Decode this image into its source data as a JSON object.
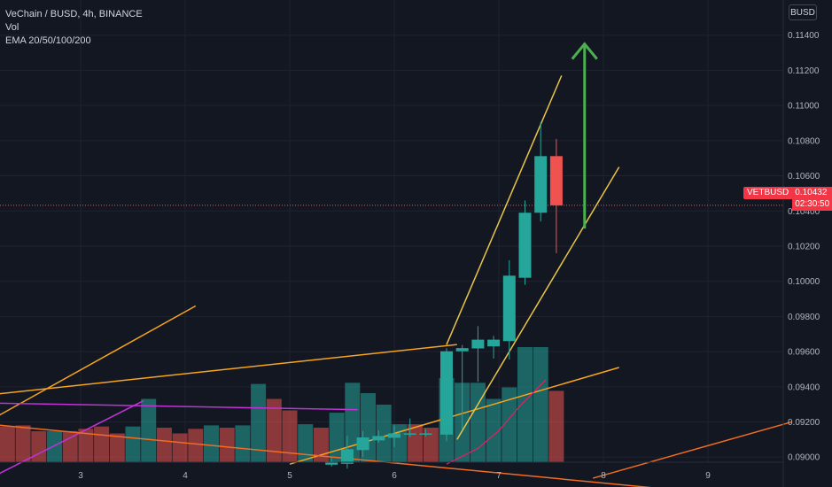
{
  "legend": {
    "title": "VeChain / BUSD, 4h, BINANCE",
    "vol": "Vol",
    "ema": "EMA 20/50/100/200"
  },
  "currency_button": "BUSD",
  "last_price": {
    "symbol": "VETBUSD",
    "price": "0.10432",
    "countdown": "02:30:50",
    "color": "#f23645"
  },
  "chart_data": {
    "type": "candlestick",
    "symbol": "VETBUSD",
    "interval": "4h",
    "y_ticks": [
      "0.11400",
      "0.11200",
      "0.11000",
      "0.10800",
      "0.10600",
      "0.10400",
      "0.10200",
      "0.10000",
      "0.09800",
      "0.09600",
      "0.09400",
      "0.09200",
      "0.09000"
    ],
    "x_ticks": [
      "3",
      "4",
      "5",
      "6",
      "7",
      "8",
      "9"
    ],
    "ylim": [
      0.0883,
      0.116
    ],
    "candles": [
      {
        "x": 5.4,
        "o": 0.08957,
        "h": 0.08998,
        "l": 0.08947,
        "c": 0.08975
      },
      {
        "x": 5.55,
        "o": 0.08962,
        "h": 0.0912,
        "l": 0.08935,
        "c": 0.09045
      },
      {
        "x": 5.7,
        "o": 0.0904,
        "h": 0.09148,
        "l": 0.09001,
        "c": 0.09112
      },
      {
        "x": 5.85,
        "o": 0.09095,
        "h": 0.09152,
        "l": 0.09082,
        "c": 0.0912
      },
      {
        "x": 6.0,
        "o": 0.0911,
        "h": 0.0918,
        "l": 0.09058,
        "c": 0.09135
      },
      {
        "x": 6.15,
        "o": 0.0913,
        "h": 0.0922,
        "l": 0.09115,
        "c": 0.09135
      },
      {
        "x": 6.3,
        "o": 0.0913,
        "h": 0.0916,
        "l": 0.09118,
        "c": 0.09135
      },
      {
        "x": 6.5,
        "o": 0.09128,
        "h": 0.0962,
        "l": 0.0909,
        "c": 0.09602
      },
      {
        "x": 6.65,
        "o": 0.09602,
        "h": 0.09638,
        "l": 0.0916,
        "c": 0.0962
      },
      {
        "x": 6.8,
        "o": 0.09618,
        "h": 0.09745,
        "l": 0.09428,
        "c": 0.09668
      },
      {
        "x": 6.95,
        "o": 0.0963,
        "h": 0.0969,
        "l": 0.0956,
        "c": 0.09668
      },
      {
        "x": 7.1,
        "o": 0.0966,
        "h": 0.1012,
        "l": 0.09555,
        "c": 0.10032
      },
      {
        "x": 7.25,
        "o": 0.1002,
        "h": 0.1046,
        "l": 0.0998,
        "c": 0.1039
      },
      {
        "x": 7.4,
        "o": 0.1039,
        "h": 0.10905,
        "l": 0.1034,
        "c": 0.10712
      },
      {
        "x": 7.55,
        "o": 0.10712,
        "h": 0.1081,
        "l": 0.1016,
        "c": 0.10432
      }
    ],
    "volume_bars": [
      {
        "x": 2.0,
        "v": 0.33,
        "up": false
      },
      {
        "x": 2.15,
        "v": 0.34,
        "up": false
      },
      {
        "x": 2.3,
        "v": 0.31,
        "up": false
      },
      {
        "x": 2.45,
        "v": 0.32,
        "up": false
      },
      {
        "x": 2.6,
        "v": 0.27,
        "up": false
      },
      {
        "x": 2.75,
        "v": 0.27,
        "up": true
      },
      {
        "x": 2.9,
        "v": 0.27,
        "up": false
      },
      {
        "x": 3.05,
        "v": 0.29,
        "up": false
      },
      {
        "x": 3.2,
        "v": 0.31,
        "up": false
      },
      {
        "x": 3.35,
        "v": 0.25,
        "up": false
      },
      {
        "x": 3.5,
        "v": 0.31,
        "up": true
      },
      {
        "x": 3.65,
        "v": 0.55,
        "up": true
      },
      {
        "x": 3.8,
        "v": 0.3,
        "up": false
      },
      {
        "x": 3.95,
        "v": 0.25,
        "up": false
      },
      {
        "x": 4.1,
        "v": 0.29,
        "up": false
      },
      {
        "x": 4.25,
        "v": 0.32,
        "up": true
      },
      {
        "x": 4.4,
        "v": 0.3,
        "up": false
      },
      {
        "x": 4.55,
        "v": 0.32,
        "up": true
      },
      {
        "x": 4.7,
        "v": 0.68,
        "up": true
      },
      {
        "x": 4.85,
        "v": 0.55,
        "up": false
      },
      {
        "x": 5.0,
        "v": 0.45,
        "up": false
      },
      {
        "x": 5.15,
        "v": 0.33,
        "up": true
      },
      {
        "x": 5.3,
        "v": 0.3,
        "up": false
      },
      {
        "x": 5.45,
        "v": 0.43,
        "up": true
      },
      {
        "x": 5.6,
        "v": 0.69,
        "up": true
      },
      {
        "x": 5.75,
        "v": 0.6,
        "up": true
      },
      {
        "x": 5.9,
        "v": 0.5,
        "up": true
      },
      {
        "x": 6.05,
        "v": 0.33,
        "up": true
      },
      {
        "x": 6.2,
        "v": 0.33,
        "up": false
      },
      {
        "x": 6.35,
        "v": 0.3,
        "up": false
      },
      {
        "x": 6.5,
        "v": 0.73,
        "up": true
      },
      {
        "x": 6.65,
        "v": 0.69,
        "up": true
      },
      {
        "x": 6.8,
        "v": 0.69,
        "up": true
      },
      {
        "x": 6.95,
        "v": 0.55,
        "up": true
      },
      {
        "x": 7.1,
        "v": 0.65,
        "up": true
      },
      {
        "x": 7.25,
        "v": 1.0,
        "up": true
      },
      {
        "x": 7.4,
        "v": 1.0,
        "up": true
      },
      {
        "x": 7.55,
        "v": 0.62,
        "up": false
      }
    ],
    "trendlines": [
      {
        "color": "#f7a51e",
        "from": [
          1.9,
          0.09132
        ],
        "to": [
          4.1,
          0.0986
        ]
      },
      {
        "color": "#f7a51e",
        "from": [
          1.9,
          0.0934
        ],
        "to": [
          6.6,
          0.0964
        ]
      },
      {
        "color": "#f7a51e",
        "from": [
          5.0,
          0.0896
        ],
        "to": [
          8.15,
          0.0951
        ]
      },
      {
        "color": "#e8c547",
        "from": [
          6.5,
          0.0964
        ],
        "to": [
          7.6,
          0.1117
        ]
      },
      {
        "color": "#e8c547",
        "from": [
          6.6,
          0.091
        ],
        "to": [
          8.15,
          0.1065
        ]
      },
      {
        "color": "#c132d8",
        "from": [
          1.9,
          0.0931
        ],
        "to": [
          5.65,
          0.0927
        ]
      },
      {
        "color": "#c132d8",
        "from": [
          1.9,
          0.0881
        ],
        "to": [
          3.6,
          0.0932
        ]
      },
      {
        "color": "#f26d21",
        "from": [
          1.9,
          0.092
        ],
        "to": [
          8.75,
          0.0881
        ]
      },
      {
        "color": "#f26d21",
        "from": [
          7.9,
          0.0888
        ],
        "to": [
          9.8,
          0.092
        ]
      }
    ],
    "ema_segment": {
      "color": "#e91e63",
      "points": [
        [
          6.5,
          0.0896
        ],
        [
          6.8,
          0.0905
        ],
        [
          7.0,
          0.0915
        ],
        [
          7.2,
          0.0929
        ],
        [
          7.45,
          0.0944
        ]
      ]
    },
    "arrow": {
      "color": "#4caf50",
      "x": 7.82,
      "from": 0.103,
      "to": 0.1135
    },
    "last_price_line": 0.10432,
    "up_color": "#26a69a",
    "down_color": "#ef5350"
  }
}
